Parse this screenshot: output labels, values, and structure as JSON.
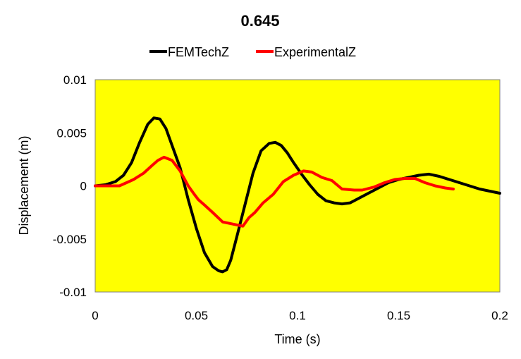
{
  "chart_data": {
    "type": "line",
    "title": "0.645",
    "xlabel": "Time (s)",
    "ylabel": "Displacement (m)",
    "xlim": [
      0,
      0.2
    ],
    "ylim": [
      -0.01,
      0.01
    ],
    "xticks": [
      "0",
      "0.05",
      "0.1",
      "0.15",
      "0.2"
    ],
    "yticks": [
      "0.01",
      "0.005",
      "0",
      "-0.005",
      "-0.01"
    ],
    "xtick_values": [
      0,
      0.05,
      0.1,
      0.15,
      0.2
    ],
    "ytick_values": [
      0.01,
      0.005,
      0,
      -0.005,
      -0.01
    ],
    "grid": false,
    "legend_position": "top",
    "plot_background": "#ffff00",
    "series": [
      {
        "name": "FEMTechZ",
        "color": "#000000",
        "x": [
          0,
          0.005,
          0.01,
          0.014,
          0.018,
          0.022,
          0.026,
          0.029,
          0.032,
          0.035,
          0.038,
          0.042,
          0.046,
          0.05,
          0.054,
          0.058,
          0.061,
          0.063,
          0.065,
          0.067,
          0.07,
          0.074,
          0.078,
          0.082,
          0.086,
          0.089,
          0.092,
          0.095,
          0.098,
          0.102,
          0.106,
          0.11,
          0.114,
          0.118,
          0.122,
          0.126,
          0.13,
          0.135,
          0.14,
          0.145,
          0.15,
          0.155,
          0.16,
          0.165,
          0.17,
          0.175,
          0.18,
          0.185,
          0.19,
          0.195,
          0.2
        ],
        "y": [
          0,
          0.0001,
          0.0004,
          0.001,
          0.0022,
          0.0041,
          0.0058,
          0.0064,
          0.0063,
          0.0054,
          0.0038,
          0.0017,
          -0.0013,
          -0.004,
          -0.0063,
          -0.0076,
          -0.008,
          -0.0081,
          -0.0079,
          -0.007,
          -0.0048,
          -0.0018,
          0.0012,
          0.0033,
          0.004,
          0.0041,
          0.0038,
          0.0031,
          0.0022,
          0.0011,
          0.0001,
          -0.0008,
          -0.0014,
          -0.0016,
          -0.0017,
          -0.0016,
          -0.0012,
          -0.0007,
          -0.0002,
          0.0003,
          0.0006,
          0.0008,
          0.001,
          0.0011,
          0.0009,
          0.0006,
          0.0003,
          0.0,
          -0.0003,
          -0.0005,
          -0.0007
        ]
      },
      {
        "name": "ExperimentalZ",
        "color": "#ff0000",
        "x": [
          0,
          0.006,
          0.012,
          0.019,
          0.024,
          0.028,
          0.031,
          0.034,
          0.038,
          0.042,
          0.046,
          0.049,
          0.051,
          0.054,
          0.058,
          0.063,
          0.068,
          0.073,
          0.076,
          0.079,
          0.083,
          0.088,
          0.093,
          0.098,
          0.103,
          0.107,
          0.112,
          0.117,
          0.122,
          0.128,
          0.132,
          0.138,
          0.143,
          0.148,
          0.153,
          0.158,
          0.163,
          0.168,
          0.173,
          0.177
        ],
        "y": [
          0,
          0.0,
          0.0,
          0.0006,
          0.0012,
          0.0019,
          0.0024,
          0.0027,
          0.0024,
          0.0014,
          0.0,
          -0.0008,
          -0.0013,
          -0.0018,
          -0.0025,
          -0.0034,
          -0.0036,
          -0.0038,
          -0.003,
          -0.0025,
          -0.0016,
          -0.0008,
          0.0004,
          0.001,
          0.0014,
          0.0013,
          0.0008,
          0.0005,
          -0.0003,
          -0.0004,
          -0.0004,
          -0.0001,
          0.0003,
          0.0006,
          0.0007,
          0.0007,
          0.0003,
          0.0,
          -0.0002,
          -0.0003
        ]
      }
    ]
  }
}
